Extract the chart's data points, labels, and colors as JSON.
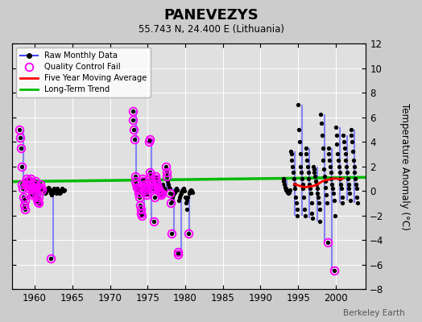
{
  "title": "PANEVEZYS",
  "subtitle": "55.743 N, 24.400 E (Lithuania)",
  "ylabel": "Temperature Anomaly (°C)",
  "credit": "Berkeley Earth",
  "xlim": [
    1957,
    2004
  ],
  "ylim": [
    -8,
    12
  ],
  "yticks": [
    -8,
    -6,
    -4,
    -2,
    0,
    2,
    4,
    6,
    8,
    10,
    12
  ],
  "xticks": [
    1960,
    1965,
    1970,
    1975,
    1980,
    1985,
    1990,
    1995,
    2000
  ],
  "bg_color": "#cccccc",
  "plot_bg_color": "#e0e0e0",
  "grid_color": "#ffffff",
  "raw_color": "#4444ff",
  "qc_color": "#ff00ff",
  "ma_color": "#ff0000",
  "trend_color": "#00bb00",
  "monthly_data": {
    "1958": [
      5.0,
      4.3,
      3.5,
      2.0,
      0.5,
      0.2,
      -0.5,
      -1.2,
      -1.5,
      -0.8,
      0.5,
      1.0
    ],
    "1959": [
      0.8,
      0.5,
      0.2,
      0.5,
      0.8,
      1.0,
      0.5,
      0.2,
      -0.3,
      -0.2,
      0.1,
      0.3
    ],
    "1960": [
      0.5,
      0.8,
      0.3,
      -0.2,
      -0.7,
      -0.9,
      -1.0,
      -0.5,
      0.2,
      0.5,
      0.3,
      0.1
    ],
    "1961": [
      0.3,
      0.2,
      0.1,
      0.0,
      -0.1,
      -0.2,
      -0.1,
      0.0,
      0.1,
      0.2,
      0.3,
      0.2
    ],
    "1962": [
      0.1,
      -0.2,
      -5.5,
      -0.3,
      -0.2,
      0.0,
      0.1,
      0.2,
      0.1,
      0.0,
      -0.1,
      -0.2
    ],
    "1963": [
      0.2,
      0.1,
      0.0,
      -0.1,
      -0.2,
      -0.1,
      0.0,
      0.1,
      0.2,
      0.1,
      0.0,
      0.1
    ],
    "1973": [
      6.5,
      5.8,
      5.0,
      4.2,
      1.2,
      0.8,
      0.5,
      0.3,
      0.2,
      0.1,
      -0.2,
      -0.5
    ],
    "1974": [
      -1.2,
      -1.5,
      -1.8,
      -2.0,
      1.0,
      0.8,
      0.5,
      0.3,
      0.2,
      0.1,
      -0.1,
      -0.3
    ],
    "1975": [
      0.5,
      0.3,
      4.0,
      4.2,
      1.5,
      1.2,
      0.8,
      0.5,
      0.3,
      0.2,
      -2.5,
      -0.5
    ],
    "1976": [
      1.2,
      1.0,
      0.8,
      0.5,
      0.3,
      0.2,
      0.1,
      0.0,
      -0.1,
      -0.2,
      -0.3,
      -0.2
    ],
    "1977": [
      0.5,
      0.3,
      0.2,
      0.1,
      0.0,
      2.0,
      1.5,
      1.2,
      0.8,
      0.5,
      0.3,
      0.2
    ],
    "1978": [
      -0.2,
      -1.0,
      -3.5,
      -0.8,
      -0.5,
      -0.3,
      -0.2,
      -0.1,
      0.0,
      0.1,
      0.2,
      0.1
    ],
    "1979": [
      -5.0,
      -5.2,
      -0.8,
      -0.5,
      -0.3,
      -0.2,
      -0.1,
      0.0,
      0.1,
      0.2,
      0.1,
      0.0
    ],
    "1980": [
      -0.5,
      -1.0,
      -1.5,
      -0.8,
      -0.5,
      -3.5,
      -0.2,
      -0.1,
      0.0,
      0.1,
      0.0,
      -0.1
    ],
    "1993": [
      1.0,
      0.8,
      0.5,
      0.3,
      0.2,
      0.1,
      0.0,
      -0.1,
      -0.2,
      -0.1,
      0.0,
      0.1
    ],
    "1994": [
      3.2,
      3.0,
      2.5,
      2.0,
      1.5,
      1.0,
      0.5,
      0.2,
      -0.5,
      -1.0,
      -1.5,
      -2.0
    ],
    "1995": [
      7.0,
      5.0,
      4.0,
      3.0,
      2.0,
      1.5,
      1.0,
      0.5,
      0.2,
      -0.5,
      -1.5,
      -2.0
    ],
    "1996": [
      3.5,
      3.0,
      2.5,
      2.0,
      1.5,
      1.0,
      0.5,
      0.2,
      -0.2,
      -1.0,
      -1.8,
      -2.2
    ],
    "1997": [
      2.0,
      1.8,
      1.5,
      1.2,
      0.8,
      0.5,
      0.2,
      -0.2,
      -0.5,
      -1.0,
      -1.5,
      -2.5
    ],
    "1998": [
      6.2,
      5.5,
      4.5,
      3.5,
      2.5,
      1.8,
      1.2,
      0.8,
      0.3,
      -0.3,
      -1.0,
      -4.2
    ],
    "1999": [
      3.5,
      3.0,
      2.5,
      2.0,
      1.5,
      1.0,
      0.5,
      0.2,
      -0.2,
      -0.8,
      -6.5,
      -2.0
    ],
    "2000": [
      5.2,
      4.5,
      3.8,
      3.0,
      2.5,
      2.0,
      1.5,
      1.0,
      0.5,
      0.2,
      -0.5,
      -1.0
    ],
    "2001": [
      4.5,
      4.0,
      3.5,
      3.0,
      2.5,
      2.0,
      1.5,
      1.0,
      0.5,
      0.2,
      -0.2,
      -0.8
    ],
    "2002": [
      5.0,
      4.5,
      4.0,
      3.2,
      2.5,
      2.0,
      1.5,
      1.0,
      0.5,
      0.2,
      -0.5,
      -1.0
    ]
  },
  "qc_fail_data": {
    "1958": [
      0,
      1,
      2,
      3,
      4,
      5,
      6,
      7,
      8,
      9,
      10,
      11
    ],
    "1959": [
      0,
      1,
      2,
      3,
      4,
      5,
      6,
      7,
      8,
      9,
      10,
      11
    ],
    "1960": [
      0,
      1,
      2,
      3,
      4,
      5,
      6,
      7,
      8,
      9,
      10,
      11
    ],
    "1962": [
      2
    ],
    "1973": [
      0,
      1,
      2,
      3,
      4,
      5,
      6,
      7,
      8,
      9,
      10,
      11
    ],
    "1974": [
      0,
      1,
      2,
      3,
      4,
      5,
      6,
      7,
      8,
      9,
      10,
      11
    ],
    "1975": [
      0,
      1,
      2,
      3,
      4,
      5,
      6,
      7,
      8,
      9,
      10,
      11
    ],
    "1976": [
      0,
      1,
      2,
      3,
      4,
      5,
      6,
      7,
      8,
      9,
      10,
      11
    ],
    "1977": [
      5,
      6,
      7
    ],
    "1978": [
      0,
      1,
      2
    ],
    "1979": [
      0,
      1
    ],
    "1980": [
      5
    ],
    "1998": [
      11
    ],
    "1999": [
      10
    ]
  },
  "moving_avg_x": [
    1994.5,
    1995.0,
    1995.5,
    1996.0,
    1996.5,
    1997.0,
    1997.5,
    1998.0,
    1998.5,
    1999.0,
    1999.5,
    2000.0,
    2000.5,
    2001.0
  ],
  "moving_avg_y": [
    0.55,
    0.45,
    0.35,
    0.3,
    0.35,
    0.4,
    0.5,
    0.7,
    0.85,
    0.9,
    1.0,
    1.0,
    0.95,
    1.0
  ],
  "trend_x": [
    1957,
    2004
  ],
  "trend_y": [
    0.75,
    1.1
  ]
}
